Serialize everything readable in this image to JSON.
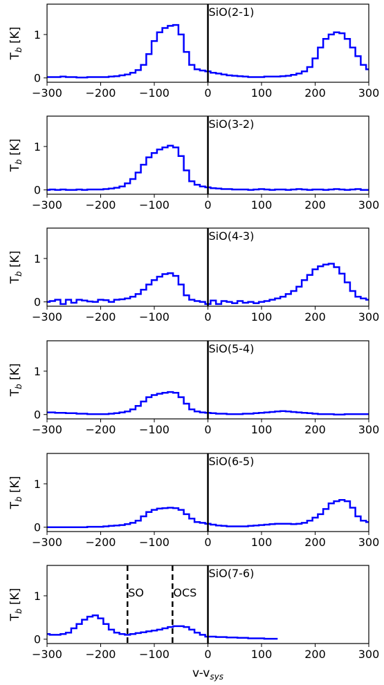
{
  "chart_data": [
    {
      "type": "line",
      "title": "SiO(2-1)",
      "ylabel": "T_b [K]",
      "xlabel": "",
      "xlim": [
        -300,
        300
      ],
      "ylim": [
        -0.1,
        1.7
      ],
      "xticks": [
        "-300",
        "-200",
        "-100",
        "0",
        "100",
        "200",
        "300"
      ],
      "yticks": [
        "0",
        "1"
      ],
      "color": "#0000ff",
      "series": [
        {
          "x": [
            -300,
            -290,
            -280,
            -270,
            -260,
            -250,
            -240,
            -230,
            -220,
            -210,
            -200,
            -190,
            -180,
            -170,
            -160,
            -150,
            -140,
            -130,
            -120,
            -110,
            -100,
            -90,
            -80,
            -70,
            -60,
            -50,
            -40,
            -30,
            -20,
            -10,
            0,
            10,
            20,
            30,
            40,
            50,
            60,
            70,
            80,
            90,
            100,
            110,
            120,
            130,
            140,
            150,
            160,
            170,
            180,
            190,
            200,
            210,
            220,
            230,
            240,
            250,
            260,
            270,
            280,
            290,
            300
          ],
          "y": [
            0.02,
            0.02,
            0.02,
            0.03,
            0.02,
            0.02,
            0.01,
            0.01,
            0.02,
            0.02,
            0.02,
            0.02,
            0.03,
            0.04,
            0.06,
            0.08,
            0.12,
            0.18,
            0.3,
            0.55,
            0.85,
            1.05,
            1.15,
            1.2,
            1.22,
            1.0,
            0.6,
            0.3,
            0.2,
            0.17,
            0.15,
            0.12,
            0.1,
            0.08,
            0.06,
            0.05,
            0.04,
            0.03,
            0.02,
            0.02,
            0.02,
            0.03,
            0.03,
            0.03,
            0.04,
            0.05,
            0.07,
            0.1,
            0.15,
            0.25,
            0.45,
            0.7,
            0.9,
            1.0,
            1.05,
            1.03,
            0.9,
            0.7,
            0.5,
            0.3,
            0.2
          ]
        }
      ]
    },
    {
      "type": "line",
      "title": "SiO(3-2)",
      "ylabel": "T_b [K]",
      "xlabel": "",
      "xlim": [
        -300,
        300
      ],
      "ylim": [
        -0.1,
        1.7
      ],
      "xticks": [
        "-300",
        "-200",
        "-100",
        "0",
        "100",
        "200",
        "300"
      ],
      "yticks": [
        "0",
        "1"
      ],
      "color": "#0000ff",
      "series": [
        {
          "x": [
            -300,
            -290,
            -280,
            -270,
            -260,
            -250,
            -240,
            -230,
            -220,
            -210,
            -200,
            -190,
            -180,
            -170,
            -160,
            -150,
            -140,
            -130,
            -120,
            -110,
            -100,
            -90,
            -80,
            -70,
            -60,
            -50,
            -40,
            -30,
            -20,
            -10,
            0,
            10,
            20,
            30,
            40,
            50,
            60,
            70,
            80,
            90,
            100,
            110,
            120,
            130,
            140,
            150,
            160,
            170,
            180,
            190,
            200,
            210,
            220,
            230,
            240,
            250,
            260,
            270,
            280,
            290,
            300
          ],
          "y": [
            0.0,
            0.01,
            0.0,
            0.01,
            0.0,
            0.0,
            0.01,
            0.0,
            0.01,
            0.01,
            0.01,
            0.02,
            0.03,
            0.05,
            0.08,
            0.15,
            0.25,
            0.4,
            0.58,
            0.75,
            0.85,
            0.93,
            0.98,
            1.02,
            0.98,
            0.78,
            0.45,
            0.2,
            0.12,
            0.08,
            0.06,
            0.04,
            0.03,
            0.02,
            0.02,
            0.01,
            0.01,
            0.01,
            0.0,
            0.01,
            0.02,
            0.01,
            0.0,
            0.01,
            0.01,
            0.0,
            0.01,
            0.02,
            0.01,
            0.0,
            0.01,
            0.01,
            0.0,
            0.01,
            0.02,
            0.01,
            0.0,
            0.01,
            0.02,
            0.0,
            0.0
          ]
        }
      ]
    },
    {
      "type": "line",
      "title": "SiO(4-3)",
      "ylabel": "T_b [K]",
      "xlabel": "",
      "xlim": [
        -300,
        300
      ],
      "ylim": [
        -0.1,
        1.7
      ],
      "xticks": [
        "-300",
        "-200",
        "-100",
        "0",
        "100",
        "200",
        "300"
      ],
      "yticks": [
        "0",
        "1"
      ],
      "color": "#0000ff",
      "series": [
        {
          "x": [
            -300,
            -290,
            -280,
            -270,
            -260,
            -250,
            -240,
            -230,
            -220,
            -210,
            -200,
            -190,
            -180,
            -170,
            -160,
            -150,
            -140,
            -130,
            -120,
            -110,
            -100,
            -90,
            -80,
            -70,
            -60,
            -50,
            -40,
            -30,
            -20,
            -10,
            0,
            10,
            20,
            30,
            40,
            50,
            60,
            70,
            80,
            90,
            100,
            110,
            120,
            130,
            140,
            150,
            160,
            170,
            180,
            190,
            200,
            210,
            220,
            230,
            240,
            250,
            260,
            270,
            280,
            290,
            300
          ],
          "y": [
            0.0,
            0.02,
            0.05,
            -0.05,
            0.05,
            -0.02,
            0.05,
            0.03,
            0.01,
            0.0,
            0.05,
            0.04,
            0.0,
            0.05,
            0.06,
            0.08,
            0.12,
            0.18,
            0.28,
            0.4,
            0.5,
            0.58,
            0.64,
            0.66,
            0.6,
            0.4,
            0.15,
            0.05,
            0.02,
            0.0,
            -0.05,
            0.03,
            -0.05,
            0.02,
            0.0,
            -0.03,
            0.02,
            -0.02,
            0.0,
            -0.03,
            0.0,
            0.02,
            0.05,
            0.08,
            0.12,
            0.18,
            0.25,
            0.35,
            0.5,
            0.62,
            0.75,
            0.82,
            0.86,
            0.88,
            0.8,
            0.65,
            0.45,
            0.25,
            0.12,
            0.08,
            0.05
          ]
        }
      ]
    },
    {
      "type": "line",
      "title": "SiO(5-4)",
      "ylabel": "T_b [K]",
      "xlabel": "",
      "xlim": [
        -300,
        300
      ],
      "ylim": [
        -0.1,
        1.7
      ],
      "xticks": [
        "-300",
        "-200",
        "-100",
        "0",
        "100",
        "200",
        "300"
      ],
      "yticks": [
        "0",
        "1"
      ],
      "color": "#0000ff",
      "series": [
        {
          "x": [
            -300,
            -290,
            -280,
            -270,
            -260,
            -250,
            -240,
            -230,
            -220,
            -210,
            -200,
            -190,
            -180,
            -170,
            -160,
            -150,
            -140,
            -130,
            -120,
            -110,
            -100,
            -90,
            -80,
            -70,
            -60,
            -50,
            -40,
            -30,
            -20,
            -10,
            0,
            10,
            20,
            30,
            40,
            50,
            60,
            70,
            80,
            90,
            100,
            110,
            120,
            130,
            140,
            150,
            160,
            170,
            180,
            190,
            200,
            210,
            220,
            230,
            240,
            250,
            260,
            270,
            280,
            290,
            300
          ],
          "y": [
            0.05,
            0.05,
            0.04,
            0.04,
            0.03,
            0.03,
            0.02,
            0.02,
            0.01,
            0.01,
            0.01,
            0.01,
            0.02,
            0.03,
            0.05,
            0.07,
            0.12,
            0.2,
            0.3,
            0.4,
            0.45,
            0.48,
            0.5,
            0.52,
            0.5,
            0.4,
            0.25,
            0.12,
            0.07,
            0.05,
            0.04,
            0.03,
            0.02,
            0.02,
            0.01,
            0.01,
            0.01,
            0.02,
            0.02,
            0.03,
            0.04,
            0.05,
            0.06,
            0.07,
            0.08,
            0.07,
            0.06,
            0.05,
            0.04,
            0.03,
            0.02,
            0.01,
            0.01,
            0.01,
            0.0,
            0.0,
            0.01,
            0.01,
            0.01,
            0.01,
            0.01
          ]
        }
      ]
    },
    {
      "type": "line",
      "title": "SiO(6-5)",
      "ylabel": "T_b [K]",
      "xlabel": "",
      "xlim": [
        -300,
        300
      ],
      "ylim": [
        -0.1,
        1.7
      ],
      "xticks": [
        "-300",
        "-200",
        "-100",
        "0",
        "100",
        "200",
        "300"
      ],
      "yticks": [
        "0",
        "1"
      ],
      "color": "#0000ff",
      "series": [
        {
          "x": [
            -300,
            -290,
            -280,
            -270,
            -260,
            -250,
            -240,
            -230,
            -220,
            -210,
            -200,
            -190,
            -180,
            -170,
            -160,
            -150,
            -140,
            -130,
            -120,
            -110,
            -100,
            -90,
            -80,
            -70,
            -60,
            -50,
            -40,
            -30,
            -20,
            -10,
            0,
            10,
            20,
            30,
            40,
            50,
            60,
            70,
            80,
            90,
            100,
            110,
            120,
            130,
            140,
            150,
            160,
            170,
            180,
            190,
            200,
            210,
            220,
            230,
            240,
            250,
            260,
            270,
            280,
            290,
            300
          ],
          "y": [
            0.0,
            0.0,
            0.0,
            0.0,
            0.0,
            0.0,
            0.0,
            0.0,
            0.01,
            0.01,
            0.01,
            0.02,
            0.03,
            0.04,
            0.05,
            0.07,
            0.1,
            0.15,
            0.25,
            0.35,
            0.4,
            0.43,
            0.44,
            0.45,
            0.44,
            0.4,
            0.3,
            0.2,
            0.12,
            0.1,
            0.08,
            0.06,
            0.04,
            0.03,
            0.02,
            0.02,
            0.02,
            0.02,
            0.03,
            0.04,
            0.05,
            0.06,
            0.07,
            0.08,
            0.08,
            0.08,
            0.07,
            0.08,
            0.1,
            0.15,
            0.22,
            0.3,
            0.42,
            0.55,
            0.6,
            0.63,
            0.6,
            0.45,
            0.25,
            0.15,
            0.12
          ]
        }
      ]
    },
    {
      "type": "line",
      "title": "SiO(7-6)",
      "ylabel": "T_b [K]",
      "xlabel": "v-v_sys",
      "xlim": [
        -300,
        300
      ],
      "ylim": [
        -0.1,
        1.7
      ],
      "xticks": [
        "-300",
        "-200",
        "-100",
        "0",
        "100",
        "200",
        "300"
      ],
      "yticks": [
        "0",
        "1"
      ],
      "color": "#0000ff",
      "markers": [
        {
          "x": -150,
          "label": "SO"
        },
        {
          "x": -66,
          "label": "OCS"
        }
      ],
      "series": [
        {
          "x": [
            -300,
            -290,
            -280,
            -270,
            -260,
            -250,
            -240,
            -230,
            -220,
            -210,
            -200,
            -190,
            -180,
            -170,
            -160,
            -150,
            -140,
            -130,
            -120,
            -110,
            -100,
            -90,
            -80,
            -70,
            -60,
            -50,
            -40,
            -30,
            -20,
            -10,
            0,
            10,
            20,
            30,
            40,
            50,
            60,
            70,
            80,
            90,
            100,
            110,
            120,
            130
          ],
          "y": [
            0.12,
            0.1,
            0.1,
            0.12,
            0.15,
            0.25,
            0.35,
            0.45,
            0.52,
            0.55,
            0.48,
            0.35,
            0.22,
            0.15,
            0.12,
            0.1,
            0.12,
            0.14,
            0.16,
            0.18,
            0.2,
            0.22,
            0.25,
            0.28,
            0.3,
            0.3,
            0.28,
            0.22,
            0.15,
            0.1,
            0.06,
            0.06,
            0.05,
            0.05,
            0.04,
            0.04,
            0.03,
            0.03,
            0.02,
            0.02,
            0.02,
            0.01,
            0.01,
            0.01
          ]
        }
      ]
    }
  ]
}
